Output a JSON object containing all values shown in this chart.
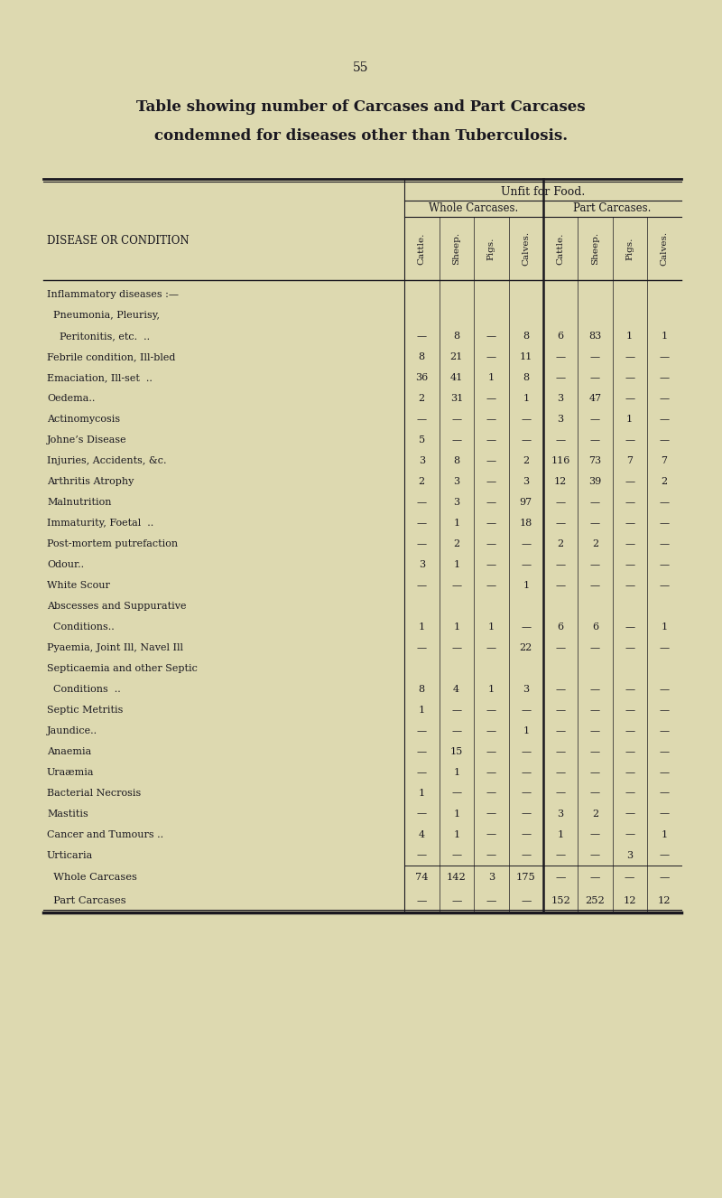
{
  "page_number": "55",
  "title_line1": "Table showing number of Carcases and Part Carcases",
  "title_line2": "condemned for diseases other than Tuberculosis.",
  "bg_color": "#ddd9b0",
  "header_level1": "Unfit for Food.",
  "header_level2_left": "Whole Carcases.",
  "header_level2_right": "Part Carcases.",
  "col_headers": [
    "Cattle.",
    "Sheep.",
    "Pigs.",
    "Calves.",
    "Cattle.",
    "Sheep.",
    "Pigs.",
    "Calves."
  ],
  "row_label_col": "DISEASE OR CONDITION",
  "rows": [
    {
      "label": "Inflammatory diseases :—",
      "indent": 0,
      "vals": [
        "",
        "",
        "",
        "",
        "",
        "",
        "",
        ""
      ]
    },
    {
      "label": "  Pneumonia, Pleurisy,",
      "indent": 0,
      "vals": [
        "",
        "",
        "",
        "",
        "",
        "",
        "",
        ""
      ]
    },
    {
      "label": "    Peritonitis, etc.  ..",
      "indent": 0,
      "vals": [
        "—",
        "8",
        "—",
        "8",
        "6",
        "83",
        "1",
        "1"
      ]
    },
    {
      "label": "Febrile condition, Ill-bled",
      "indent": 0,
      "vals": [
        "8",
        "21",
        "—",
        "11",
        "—",
        "—",
        "—",
        "—"
      ]
    },
    {
      "label": "Emaciation, Ill-set  ..",
      "indent": 0,
      "vals": [
        "36",
        "41",
        "1",
        "8",
        "—",
        "—",
        "—",
        "—"
      ]
    },
    {
      "label": "Oedema..",
      "indent": 0,
      "vals": [
        "2",
        "31",
        "—",
        "1",
        "3",
        "47",
        "—",
        "—"
      ]
    },
    {
      "label": "Actinomycosis",
      "indent": 0,
      "vals": [
        "—",
        "—",
        "—",
        "—",
        "3",
        "—",
        "1",
        "—"
      ]
    },
    {
      "label": "Johne’s Disease",
      "indent": 0,
      "vals": [
        "5",
        "—",
        "—",
        "—",
        "—",
        "—",
        "—",
        "—"
      ]
    },
    {
      "label": "Injuries, Accidents, &c.",
      "indent": 0,
      "vals": [
        "3",
        "8",
        "—",
        "2",
        "116",
        "73",
        "7",
        "7"
      ]
    },
    {
      "label": "Arthritis Atrophy",
      "indent": 0,
      "vals": [
        "2",
        "3",
        "—",
        "3",
        "12",
        "39",
        "—",
        "2"
      ]
    },
    {
      "label": "Malnutrition",
      "indent": 0,
      "vals": [
        "—",
        "3",
        "—",
        "97",
        "—",
        "—",
        "—",
        "—"
      ]
    },
    {
      "label": "Immaturity, Foetal  ..",
      "indent": 0,
      "vals": [
        "—",
        "1",
        "—",
        "18",
        "—",
        "—",
        "—",
        "—"
      ]
    },
    {
      "label": "Post-mortem putrefaction",
      "indent": 0,
      "vals": [
        "—",
        "2",
        "—",
        "—",
        "2",
        "2",
        "—",
        "—"
      ]
    },
    {
      "label": "Odour..",
      "indent": 0,
      "vals": [
        "3",
        "1",
        "—",
        "—",
        "—",
        "—",
        "—",
        "—"
      ]
    },
    {
      "label": "White Scour",
      "indent": 0,
      "vals": [
        "—",
        "—",
        "—",
        "1",
        "—",
        "—",
        "—",
        "—"
      ]
    },
    {
      "label": "Abscesses and Suppurative",
      "indent": 0,
      "vals": [
        "",
        "",
        "",
        "",
        "",
        "",
        "",
        ""
      ]
    },
    {
      "label": "  Conditions..",
      "indent": 0,
      "vals": [
        "1",
        "1",
        "1",
        "—",
        "6",
        "6",
        "—",
        "1"
      ]
    },
    {
      "label": "Pyaemia, Joint Ill, Navel Ill",
      "indent": 0,
      "vals": [
        "—",
        "—",
        "—",
        "22",
        "—",
        "—",
        "—",
        "—"
      ]
    },
    {
      "label": "Septicaemia and other Septic",
      "indent": 0,
      "vals": [
        "",
        "",
        "",
        "",
        "",
        "",
        "",
        ""
      ]
    },
    {
      "label": "  Conditions  ..",
      "indent": 0,
      "vals": [
        "8",
        "4",
        "1",
        "3",
        "—",
        "—",
        "—",
        "—"
      ]
    },
    {
      "label": "Septic Metritis",
      "indent": 0,
      "vals": [
        "1",
        "—",
        "—",
        "—",
        "—",
        "—",
        "—",
        "—"
      ]
    },
    {
      "label": "Jaundice..",
      "indent": 0,
      "vals": [
        "—",
        "—",
        "—",
        "1",
        "—",
        "—",
        "—",
        "—"
      ]
    },
    {
      "label": "Anaemia",
      "indent": 0,
      "vals": [
        "—",
        "15",
        "—",
        "—",
        "—",
        "—",
        "—",
        "—"
      ]
    },
    {
      "label": "Uraæmia",
      "indent": 0,
      "vals": [
        "—",
        "1",
        "—",
        "—",
        "—",
        "—",
        "—",
        "—"
      ]
    },
    {
      "label": "Bacterial Necrosis",
      "indent": 0,
      "vals": [
        "1",
        "—",
        "—",
        "—",
        "—",
        "—",
        "—",
        "—"
      ]
    },
    {
      "label": "Mastitis",
      "indent": 0,
      "vals": [
        "—",
        "1",
        "—",
        "—",
        "3",
        "2",
        "—",
        "—"
      ]
    },
    {
      "label": "Cancer and Tumours ..",
      "indent": 0,
      "vals": [
        "4",
        "1",
        "—",
        "—",
        "1",
        "—",
        "—",
        "1"
      ]
    },
    {
      "label": "Urticaria",
      "indent": 0,
      "vals": [
        "—",
        "—",
        "—",
        "—",
        "—",
        "—",
        "3",
        "—"
      ]
    }
  ],
  "totals": [
    {
      "label": "  Whole Carcases",
      "vals": [
        "74",
        "142",
        "3",
        "175",
        "—",
        "—",
        "—",
        "—"
      ]
    },
    {
      "label": "  Part Carcases",
      "vals": [
        "—",
        "—",
        "—",
        "—",
        "152",
        "252",
        "12",
        "12"
      ]
    }
  ]
}
